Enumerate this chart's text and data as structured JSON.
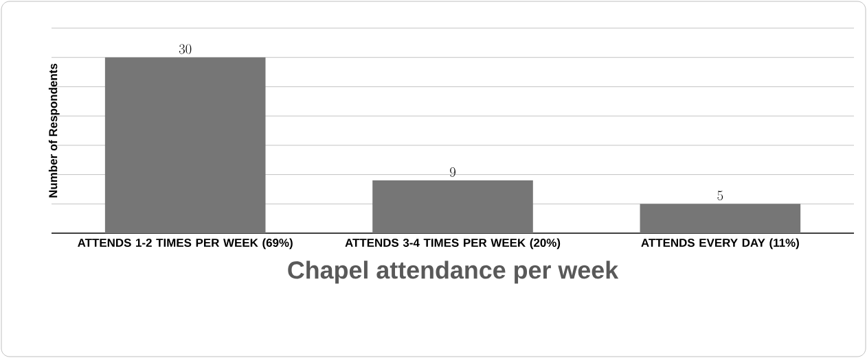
{
  "chart_data": {
    "type": "bar",
    "xlabel": "Chapel attendance per week",
    "ylabel": "Number of Respondents",
    "categories": [
      "ATTENDS 1-2 TIMES PER WEEK (69%)",
      "ATTENDS 3-4 TIMES PER WEEK (20%)",
      "ATTENDS EVERY DAY (11%)"
    ],
    "values": [
      30,
      9,
      5
    ],
    "color": "#767676",
    "data_labels": true,
    "ylim": [
      0,
      35
    ],
    "yticks": [
      {
        "value": 0,
        "label": null
      },
      {
        "value": 5,
        "label": null
      },
      {
        "value": 10,
        "label": null
      },
      {
        "value": 15,
        "label": null
      },
      {
        "value": 20,
        "label": null
      },
      {
        "value": 25,
        "label": null
      },
      {
        "value": 30,
        "label": null
      },
      {
        "value": 35,
        "label": null
      }
    ],
    "tick_labels": "x",
    "grid": "y"
  }
}
